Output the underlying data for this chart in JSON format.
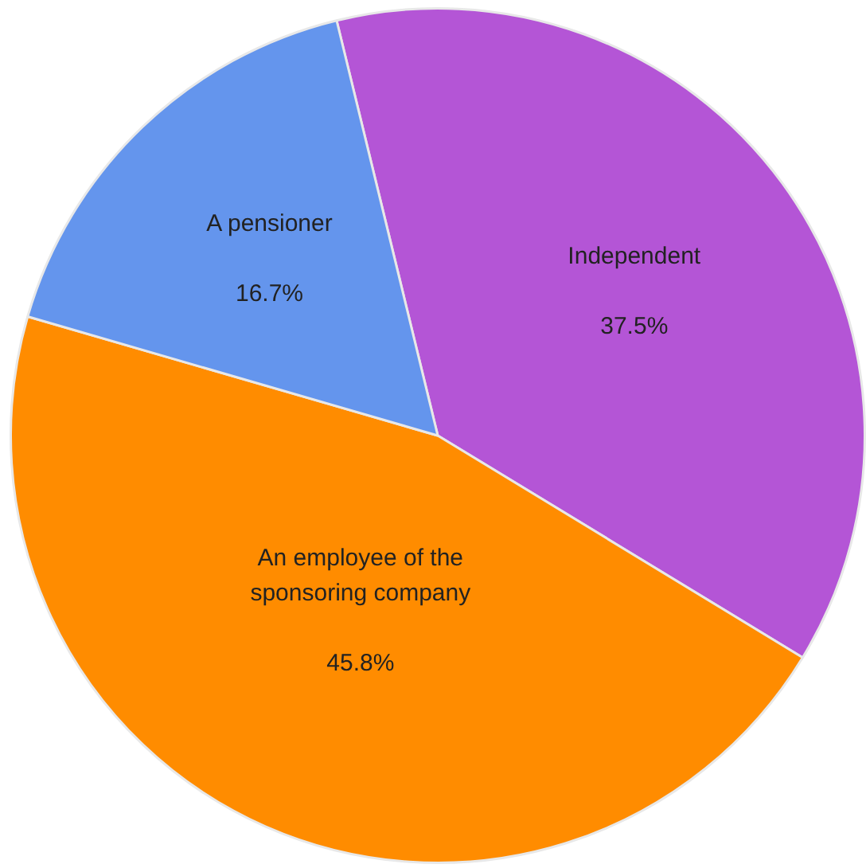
{
  "chart_data": {
    "type": "pie",
    "categories": [
      "Independent",
      "An employee of the sponsoring company",
      "A pensioner"
    ],
    "values": [
      37.5,
      45.8,
      16.7
    ],
    "colors": [
      "#b455d6",
      "#ff8c00",
      "#6495ed"
    ],
    "value_labels": [
      "37.5%",
      "45.8%",
      "16.7%"
    ],
    "legend": false
  }
}
